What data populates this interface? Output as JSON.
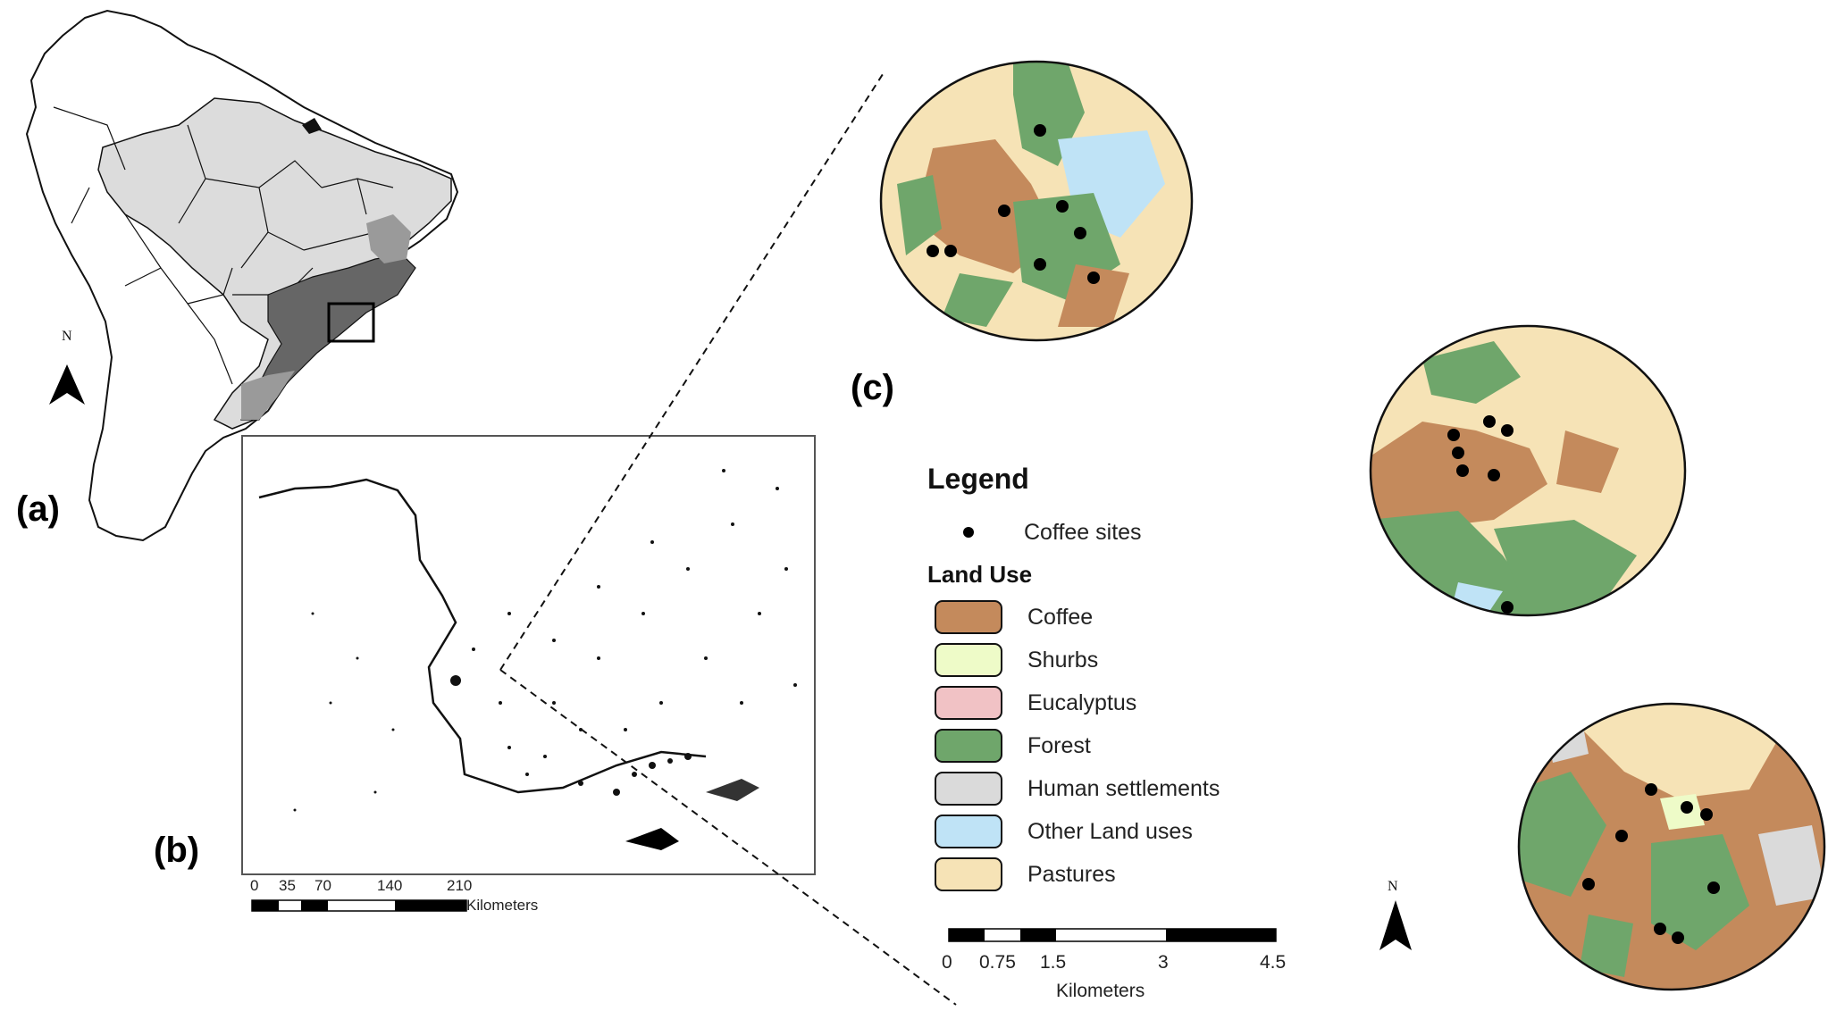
{
  "panels": {
    "a": "(a)",
    "b": "(b)",
    "c": "(c)"
  },
  "north_label": "N",
  "legend": {
    "title": "Legend",
    "point_item": "Coffee sites",
    "land_use_title": "Land Use",
    "items": [
      {
        "label": "Coffee",
        "color": "#c48a5c"
      },
      {
        "label": "Shurbs",
        "color": "#eefbc8"
      },
      {
        "label": "Eucalyptus",
        "color": "#f1c2c5"
      },
      {
        "label": "Forest",
        "color": "#6fa66b"
      },
      {
        "label": "Human settlements",
        "color": "#dadada"
      },
      {
        "label": "Other Land uses",
        "color": "#bfe3f6"
      },
      {
        "label": "Pastures",
        "color": "#f6e3b6"
      }
    ]
  },
  "scale_b": {
    "ticks": [
      "0",
      "35",
      "70",
      "140",
      "210"
    ],
    "unit": "Kilometers"
  },
  "scale_c": {
    "ticks": [
      "0",
      "0.75",
      "1.5",
      "3",
      "4.5"
    ],
    "unit": "Kilometers"
  },
  "colors": {
    "brazil_light": "#dcdcdc",
    "region_mid": "#9a9a9a",
    "region_dark": "#666666",
    "outline": "#111111"
  }
}
